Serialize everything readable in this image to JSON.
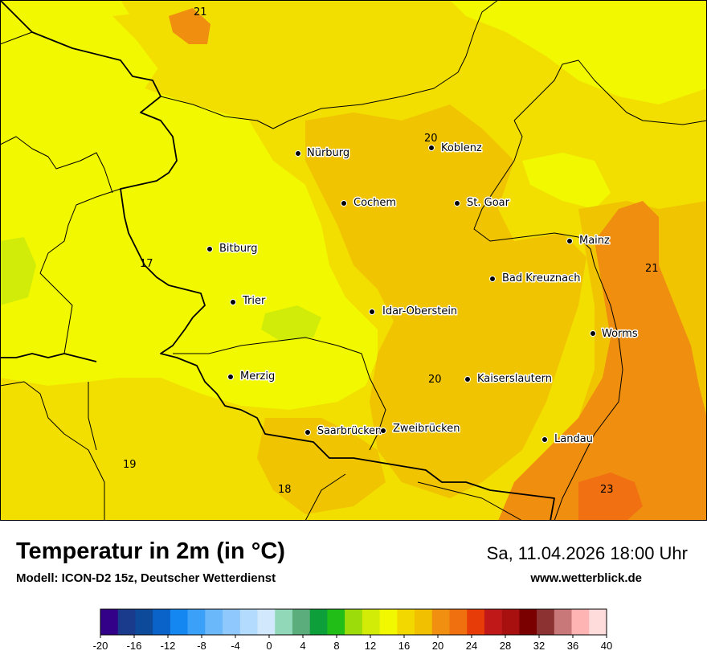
{
  "title": "Temperatur in 2m (in °C)",
  "model": "Modell: ICON-D2 15z, Deutscher Wetterdienst",
  "datetime": "Sa, 11.04.2026 18:00 Uhr",
  "website": "www.wetterblick.de",
  "cities": [
    {
      "name": "Nürburg"
    },
    {
      "name": "Koblenz"
    },
    {
      "name": "Cochem"
    },
    {
      "name": "St. Goar"
    },
    {
      "name": "Mainz"
    },
    {
      "name": "Bitburg"
    },
    {
      "name": "Bad Kreuznach"
    },
    {
      "name": "Trier"
    },
    {
      "name": "Idar-Oberstein"
    },
    {
      "name": "Worms"
    },
    {
      "name": "Merzig"
    },
    {
      "name": "Kaiserslautern"
    },
    {
      "name": "Saarbrücken"
    },
    {
      "name": "Zweibrücken"
    },
    {
      "name": "Landau"
    }
  ],
  "value_labels": [
    "21",
    "20",
    "17",
    "21",
    "20",
    "19",
    "18",
    "23"
  ],
  "legend": {
    "ticks": [
      "-20",
      "-16",
      "-12",
      "-8",
      "-4",
      "0",
      "4",
      "8",
      "12",
      "16",
      "20",
      "24",
      "28",
      "32",
      "36",
      "40"
    ],
    "colors": [
      "#330088",
      "#1a3a8c",
      "#0d4a9a",
      "#0a63c8",
      "#1487f0",
      "#3aa0f8",
      "#6ab8fa",
      "#8ec8fc",
      "#b2dbfd",
      "#d2e8fd",
      "#90d8b8",
      "#5cad7c",
      "#0da03a",
      "#22be18",
      "#9cdc0a",
      "#d2ec08",
      "#f2f800",
      "#f3d800",
      "#f1c000",
      "#f19010",
      "#f07010",
      "#e83c08",
      "#c01818",
      "#a81010",
      "#7a0000",
      "#8c3232",
      "#c87878",
      "#ffb4b4",
      "#ffdcdc"
    ]
  },
  "map_colors": {
    "yellow": "#f2f800",
    "yellow2": "#f2df00",
    "gold": "#f0c400",
    "orange": "#f08e10",
    "deeporange": "#f07012",
    "green": "#d0ec08"
  }
}
